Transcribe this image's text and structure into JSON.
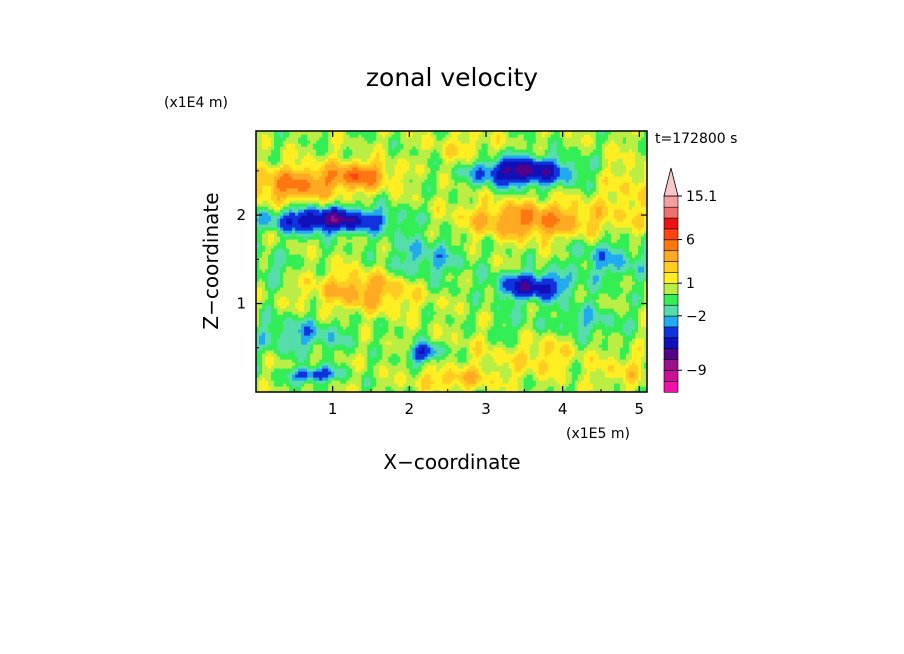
{
  "chart_data": {
    "type": "heatmap",
    "title": "zonal velocity",
    "xlabel": "X−coordinate",
    "ylabel": "Z−coordinate",
    "x_unit": "(x1E5 m)",
    "y_unit": "(x1E4 m)",
    "time_label": "t=172800 s",
    "xlim": [
      0,
      5.1
    ],
    "ylim": [
      0,
      2.95
    ],
    "x_ticks": [
      1,
      2,
      3,
      4,
      5
    ],
    "x_tick_labels": [
      "1",
      "2",
      "3",
      "4",
      "5"
    ],
    "y_ticks": [
      1,
      2
    ],
    "y_tick_labels": [
      "1",
      "2"
    ],
    "colorbar": {
      "levels": [
        -12,
        -10.5,
        -9,
        -7.5,
        -6,
        -4.5,
        -3,
        -2,
        -1,
        0,
        1,
        2,
        3,
        4.5,
        6,
        7.5,
        10,
        12.5,
        15.1,
        18
      ],
      "colors": [
        "#ee11aa",
        "#cc1199",
        "#991188",
        "#550088",
        "#1111bb",
        "#1133dd",
        "#22aaee",
        "#55ddaa",
        "#33ee55",
        "#bbee44",
        "#ffee22",
        "#ffcc22",
        "#ffaa22",
        "#ff7711",
        "#ff4411",
        "#ee1111",
        "#f07070",
        "#f4a0a0",
        "#f8c8c8"
      ],
      "labeled_levels": [
        15.1,
        6,
        1,
        -2,
        -9
      ],
      "tick_labels": [
        "15.1",
        "6",
        "1",
        "−2",
        "−9"
      ],
      "extend": "max"
    },
    "features": [
      {
        "x": 0.5,
        "z": 2.35,
        "value": 4.5,
        "sx": 0.55,
        "sz": 0.2
      },
      {
        "x": 1.35,
        "z": 2.45,
        "value": 5,
        "sx": 0.4,
        "sz": 0.15
      },
      {
        "x": 0.95,
        "z": 1.95,
        "value": -7,
        "sx": 0.75,
        "sz": 0.14
      },
      {
        "x": 3.45,
        "z": 2.5,
        "value": -7,
        "sx": 0.65,
        "sz": 0.16
      },
      {
        "x": 3.6,
        "z": 1.95,
        "value": 4.5,
        "sx": 0.85,
        "sz": 0.2
      },
      {
        "x": 1.45,
        "z": 1.15,
        "value": 3.5,
        "sx": 0.7,
        "sz": 0.22
      },
      {
        "x": 3.6,
        "z": 1.2,
        "value": -6,
        "sx": 0.45,
        "sz": 0.15
      },
      {
        "x": 4.6,
        "z": 1.5,
        "value": -2.5,
        "sx": 0.5,
        "sz": 0.25
      },
      {
        "x": 2.2,
        "z": 1.5,
        "value": -2.5,
        "sx": 0.5,
        "sz": 0.3
      },
      {
        "x": 0.6,
        "z": 0.65,
        "value": -2.5,
        "sx": 0.6,
        "sz": 0.2
      },
      {
        "x": 2.2,
        "z": 0.45,
        "value": -5,
        "sx": 0.2,
        "sz": 0.1
      },
      {
        "x": 0.75,
        "z": 0.2,
        "value": -5,
        "sx": 0.3,
        "sz": 0.08
      },
      {
        "x": 3.5,
        "z": 0.45,
        "value": 2.5,
        "sx": 0.6,
        "sz": 0.25
      },
      {
        "x": 4.3,
        "z": 0.8,
        "value": -2,
        "sx": 0.5,
        "sz": 0.2
      },
      {
        "x": 3.35,
        "z": 0.6,
        "value": -2,
        "sx": 0.3,
        "sz": 0.3
      },
      {
        "x": 4.8,
        "z": 0.25,
        "value": 1.5,
        "sx": 0.35,
        "sz": 0.2
      },
      {
        "x": 2.6,
        "z": 0.15,
        "value": 2.5,
        "sx": 0.5,
        "sz": 0.12
      },
      {
        "x": 0.2,
        "z": 1.4,
        "value": -1.5,
        "sx": 0.3,
        "sz": 0.2
      },
      {
        "x": 4.85,
        "z": 2.25,
        "value": 1.5,
        "sx": 0.35,
        "sz": 0.45
      },
      {
        "x": 2.75,
        "z": 2.7,
        "value": 1.5,
        "sx": 0.4,
        "sz": 0.25
      }
    ]
  }
}
